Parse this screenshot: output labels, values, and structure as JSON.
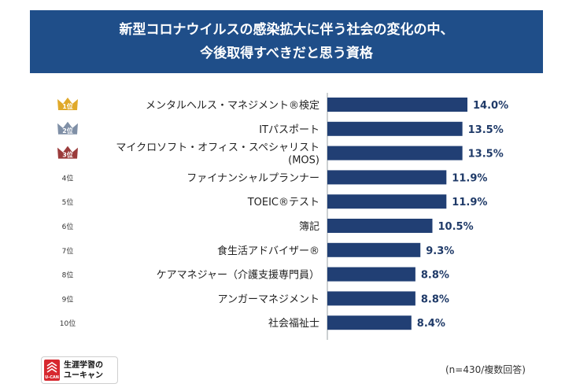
{
  "header": {
    "title_line1": "新型コロナウイルスの感染拡大に伴う社会の変化の中、",
    "title_line2": "今後取得すべきだと思う資格"
  },
  "chart_data": {
    "type": "bar",
    "orientation": "horizontal",
    "categories": [
      [
        "メンタルヘルス・マネジメント®検定"
      ],
      [
        "ITパスポート"
      ],
      [
        "マイクロソフト・オフィス・スペシャリスト",
        "(MOS)"
      ],
      [
        "ファイナンシャルプランナー"
      ],
      [
        "TOEIC®テスト"
      ],
      [
        "簿記"
      ],
      [
        "食生活アドバイザー®"
      ],
      [
        "ケアマネジャー（介護支援専門員）"
      ],
      [
        "アンガーマネジメント"
      ],
      [
        "社会福祉士"
      ]
    ],
    "values": [
      14.0,
      13.5,
      13.5,
      11.9,
      11.9,
      10.5,
      9.3,
      8.8,
      8.8,
      8.4
    ],
    "value_labels": [
      "14.0%",
      "13.5%",
      "13.5%",
      "11.9%",
      "11.9%",
      "10.5%",
      "9.3%",
      "8.8%",
      "8.8%",
      "8.4%"
    ],
    "ranks": [
      "1位",
      "2位",
      "3位",
      "4位",
      "5位",
      "6位",
      "7位",
      "8位",
      "9位",
      "10位"
    ],
    "crown_colors": [
      "#e0a92a",
      "#7f8fa6",
      "#9b3b3b"
    ],
    "bar_color": "#213f74",
    "xlim": [
      0,
      14
    ]
  },
  "logo": {
    "line1": "生涯学習の",
    "line2": "ユーキャン",
    "mark_text": "U-CAN"
  },
  "footnote": "(n=430/複数回答)"
}
